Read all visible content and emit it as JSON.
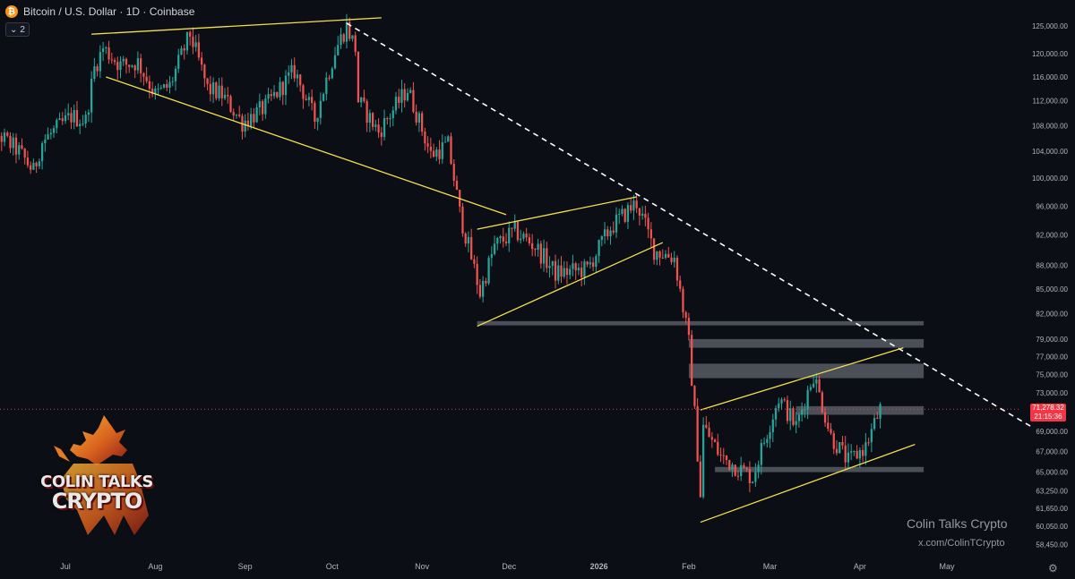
{
  "header": {
    "symbol_icon": "bitcoin-icon",
    "title": "Bitcoin / U.S. Dollar · 1D · Coinbase",
    "layers_count": "2"
  },
  "price_axis": {
    "labels": [
      "125,000.00",
      "120,000.00",
      "116,000.00",
      "112,000.00",
      "108,000.00",
      "104,000.00",
      "100,000.00",
      "96,000.00",
      "92,000.00",
      "88,000.00",
      "85,000.00",
      "82,000.00",
      "79,000.00",
      "77,000.00",
      "75,000.00",
      "73,000.00",
      "69,000.00",
      "67,000.00",
      "65,000.00",
      "63,250.00",
      "61,650.00",
      "60,050.00",
      "58,450.00"
    ],
    "last_price": "71,278.32",
    "countdown": "21:15:36"
  },
  "time_axis": {
    "labels": [
      "Jul",
      "Aug",
      "Sep",
      "Oct",
      "Nov",
      "Dec",
      "2026",
      "Feb",
      "Mar",
      "Apr",
      "May"
    ]
  },
  "colors": {
    "background": "#0b0e14",
    "up": "#26a69a",
    "down": "#ef5350",
    "trendline": "#f4e04d",
    "downtrend_dashed": "#ffffff",
    "zone": "#808590",
    "last_price_tag": "#f23645"
  },
  "watermark": {
    "line1": "Colin Talks Crypto",
    "line2": "x.com/ColinTCrypto"
  },
  "logo": {
    "line1": "COLIN TALKS",
    "line2": "CRYPTO",
    "icon": "bull-logo-icon"
  },
  "settings_icon": "gear-icon",
  "chart_data": {
    "type": "candlestick",
    "title": "Bitcoin / U.S. Dollar · 1D · Coinbase",
    "ylim": [
      58450,
      126500
    ],
    "y_scale": "log",
    "grid": false,
    "close_path": [
      [
        "2025-06-01",
        109000
      ],
      [
        "2025-06-08",
        106500
      ],
      [
        "2025-06-15",
        104000
      ],
      [
        "2025-06-20",
        101000
      ],
      [
        "2025-06-23",
        105500
      ],
      [
        "2025-06-28",
        107500
      ],
      [
        "2025-07-03",
        109500
      ],
      [
        "2025-07-08",
        108800
      ],
      [
        "2025-07-11",
        117500
      ],
      [
        "2025-07-14",
        121000
      ],
      [
        "2025-07-20",
        118000
      ],
      [
        "2025-07-26",
        118500
      ],
      [
        "2025-08-01",
        113000
      ],
      [
        "2025-08-06",
        114500
      ],
      [
        "2025-08-13",
        123500
      ],
      [
        "2025-08-19",
        114000
      ],
      [
        "2025-08-24",
        113000
      ],
      [
        "2025-08-31",
        108500
      ],
      [
        "2025-09-08",
        111000
      ],
      [
        "2025-09-18",
        117000
      ],
      [
        "2025-09-25",
        109000
      ],
      [
        "2025-10-02",
        120500
      ],
      [
        "2025-10-06",
        125000
      ],
      [
        "2025-10-09",
        121000
      ],
      [
        "2025-10-10",
        112000
      ],
      [
        "2025-10-17",
        107000
      ],
      [
        "2025-10-27",
        114000
      ],
      [
        "2025-11-04",
        103500
      ],
      [
        "2025-11-10",
        105000
      ],
      [
        "2025-11-14",
        95000
      ],
      [
        "2025-11-21",
        84500
      ],
      [
        "2025-11-26",
        90500
      ],
      [
        "2025-12-03",
        92500
      ],
      [
        "2025-12-10",
        90500
      ],
      [
        "2025-12-17",
        87000
      ],
      [
        "2025-12-28",
        87500
      ],
      [
        "2026-01-05",
        93000
      ],
      [
        "2026-01-14",
        96500
      ],
      [
        "2026-01-20",
        90000
      ],
      [
        "2026-01-27",
        89000
      ],
      [
        "2026-02-01",
        78500
      ],
      [
        "2026-02-05",
        63000
      ],
      [
        "2026-02-06",
        69500
      ],
      [
        "2026-02-12",
        66500
      ],
      [
        "2026-02-23",
        64500
      ],
      [
        "2026-03-04",
        72500
      ],
      [
        "2026-03-10",
        69500
      ],
      [
        "2026-03-16",
        75000
      ],
      [
        "2026-03-22",
        68500
      ],
      [
        "2026-03-28",
        66000
      ],
      [
        "2026-04-03",
        67500
      ],
      [
        "2026-04-08",
        71278
      ]
    ],
    "candles": [],
    "trendlines": [
      {
        "label": "rising wedge top early",
        "from": [
          "2025-07-10",
          123500
        ],
        "to": [
          "2025-10-18",
          126500
        ],
        "color": "#f4e04d"
      },
      {
        "label": "descending channel lower",
        "from": [
          "2025-07-15",
          116000
        ],
        "to": [
          "2025-11-30",
          94800
        ],
        "color": "#f4e04d"
      },
      {
        "label": "downtrend",
        "from": [
          "2025-10-06",
          125500
        ],
        "to": [
          "2026-05-30",
          69500
        ],
        "color": "#ffffff",
        "style": "dashed"
      },
      {
        "label": "bear flag lower",
        "from": [
          "2025-11-20",
          80500
        ],
        "to": [
          "2026-01-23",
          91000
        ],
        "color": "#f4e04d"
      },
      {
        "label": "bear flag upper",
        "from": [
          "2025-11-20",
          92800
        ],
        "to": [
          "2026-01-14",
          97300
        ],
        "color": "#f4e04d"
      },
      {
        "label": "channel upper",
        "from": [
          "2026-02-05",
          71200
        ],
        "to": [
          "2026-04-16",
          78000
        ],
        "color": "#f4e04d"
      },
      {
        "label": "channel lower",
        "from": [
          "2026-02-05",
          60400
        ],
        "to": [
          "2026-04-20",
          67700
        ],
        "color": "#f4e04d"
      }
    ],
    "zones": [
      {
        "from": "2025-11-20",
        "to": "2026-04-23",
        "low": 80600,
        "high": 81100
      },
      {
        "from": "2026-02-01",
        "to": "2026-04-23",
        "low": 78000,
        "high": 79000
      },
      {
        "from": "2026-02-01",
        "to": "2026-04-23",
        "low": 74600,
        "high": 76200
      },
      {
        "from": "2026-03-10",
        "to": "2026-04-23",
        "low": 70700,
        "high": 71600
      },
      {
        "from": "2026-02-10",
        "to": "2026-04-23",
        "low": 65000,
        "high": 65500
      }
    ]
  }
}
